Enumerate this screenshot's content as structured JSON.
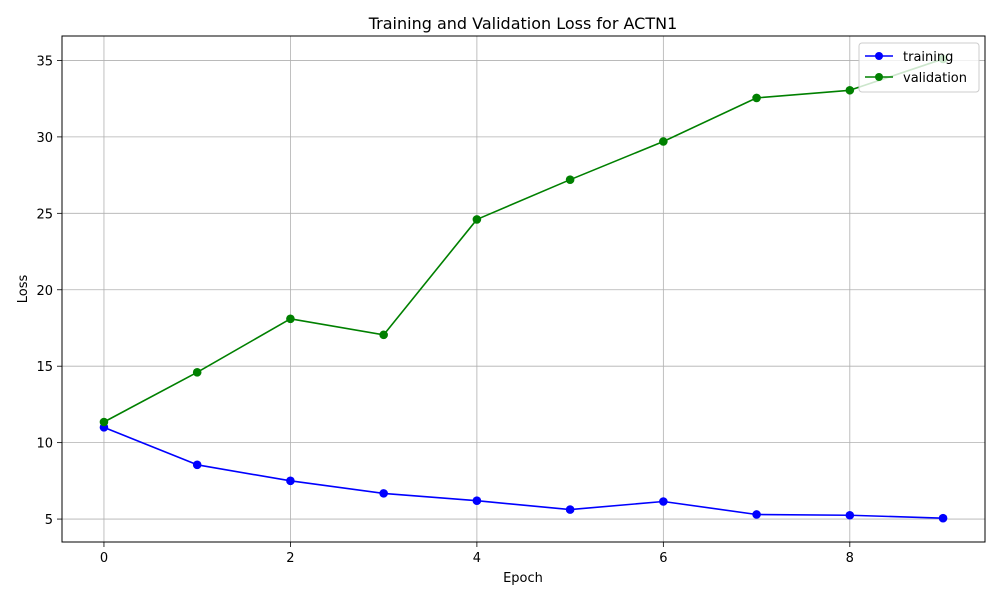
{
  "chart_data": {
    "type": "line",
    "title": "Training and Validation Loss for ACTN1",
    "xlabel": "Epoch",
    "ylabel": "Loss",
    "xlim": [
      -0.45,
      9.45
    ],
    "ylim": [
      3.5,
      36.6
    ],
    "x_ticks": [
      0,
      2,
      4,
      6,
      8
    ],
    "y_ticks": [
      5,
      10,
      15,
      20,
      25,
      30,
      35
    ],
    "grid": true,
    "legend_position": "top-right",
    "x": [
      0,
      1,
      2,
      3,
      4,
      5,
      6,
      7,
      8,
      9
    ],
    "series": [
      {
        "name": "training",
        "color": "#0000ff",
        "marker": "circle",
        "values": [
          11.0,
          8.55,
          7.5,
          6.68,
          6.2,
          5.62,
          6.15,
          5.3,
          5.25,
          5.06
        ]
      },
      {
        "name": "validation",
        "color": "#008000",
        "marker": "circle",
        "values": [
          11.35,
          14.6,
          18.1,
          17.05,
          24.6,
          27.2,
          29.7,
          32.55,
          33.05,
          35.1
        ]
      }
    ]
  }
}
